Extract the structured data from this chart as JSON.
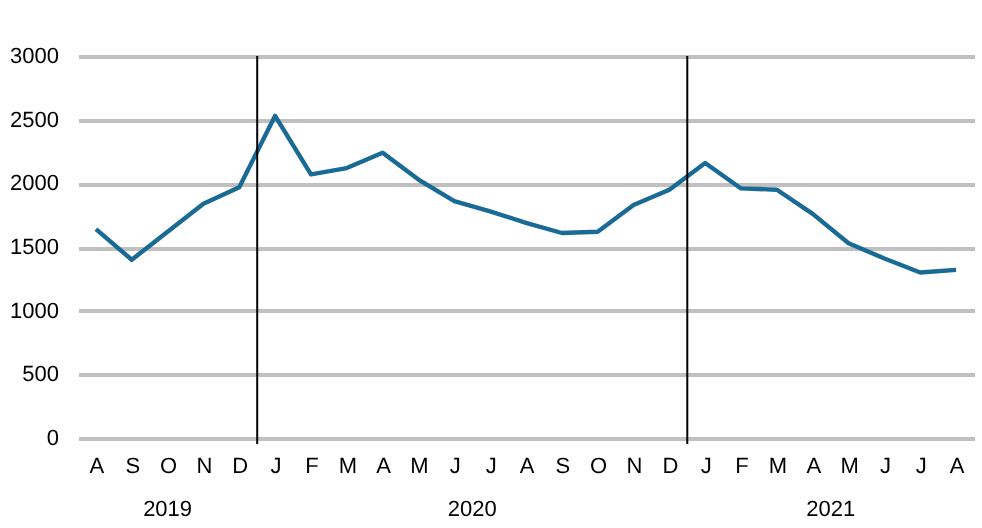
{
  "chart_data": {
    "type": "line",
    "categories": [
      "A",
      "S",
      "O",
      "N",
      "D",
      "J",
      "F",
      "M",
      "A",
      "M",
      "J",
      "J",
      "A",
      "S",
      "O",
      "N",
      "D",
      "J",
      "F",
      "M",
      "A",
      "M",
      "J",
      "J",
      "A"
    ],
    "series": [
      {
        "color": "#1a6a96",
        "values": [
          1640,
          1400,
          1620,
          1840,
          1970,
          2530,
          2070,
          2120,
          2240,
          2030,
          1860,
          1780,
          1690,
          1610,
          1620,
          1830,
          1950,
          2160,
          1960,
          1950,
          1760,
          1530,
          1410,
          1300,
          1320
        ]
      }
    ],
    "ylim": [
      0,
      3000
    ],
    "yticks": [
      0,
      500,
      1000,
      1500,
      2000,
      2500,
      3000
    ],
    "grid": "y",
    "marker": "none",
    "line_style": "solid",
    "annotations": [
      "2019",
      "2020",
      "2021"
    ]
  }
}
